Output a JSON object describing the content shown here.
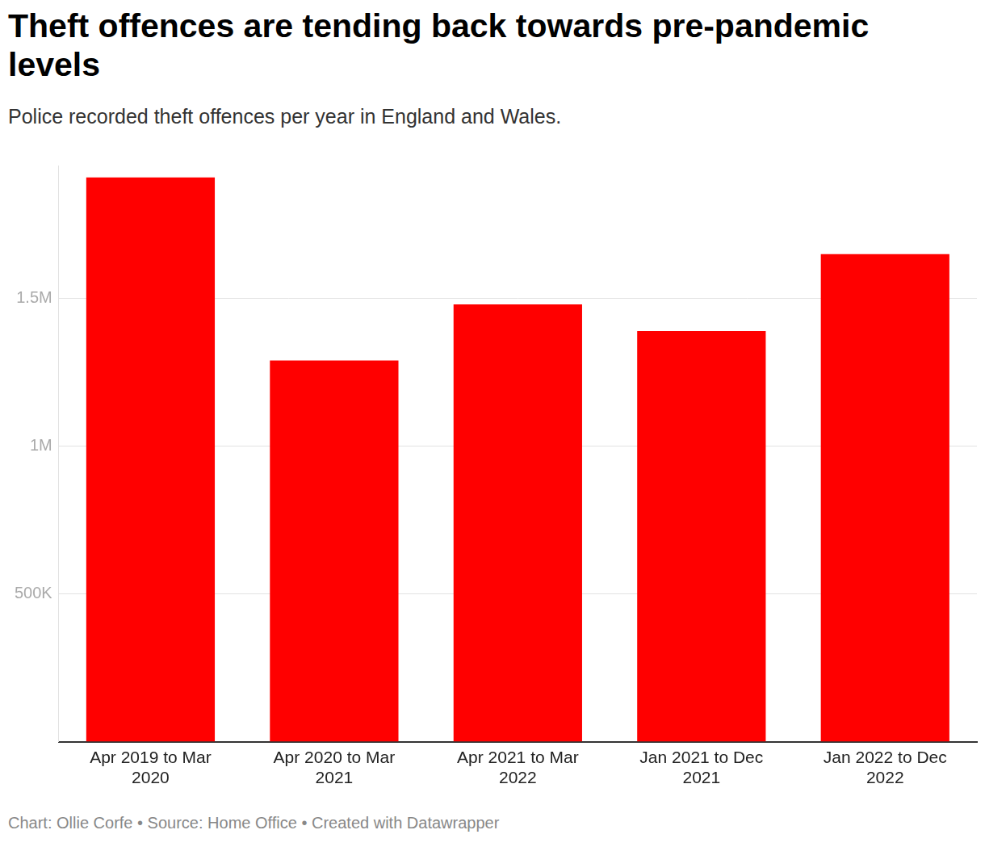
{
  "chart_data": {
    "type": "bar",
    "title": "Theft offences are tending back towards pre-pandemic levels",
    "subtitle": "Police recorded theft offences per year in England and Wales.",
    "caption": "Chart: Ollie Corfe • Source: Home Office • Created with Datawrapper",
    "categories": [
      "Apr 2019 to Mar 2020",
      "Apr 2020 to Mar 2021",
      "Apr 2021 to Mar 2022",
      "Jan 2021 to Dec 2021",
      "Jan 2022 to Dec 2022"
    ],
    "values": [
      1910000,
      1290000,
      1480000,
      1390000,
      1650000
    ],
    "color": "#ff0000",
    "ylim": [
      0,
      1950000
    ],
    "yticks": [
      {
        "value": 500000,
        "label": "500K"
      },
      {
        "value": 1000000,
        "label": "1M"
      },
      {
        "value": 1500000,
        "label": "1.5M"
      }
    ],
    "grid": true
  }
}
